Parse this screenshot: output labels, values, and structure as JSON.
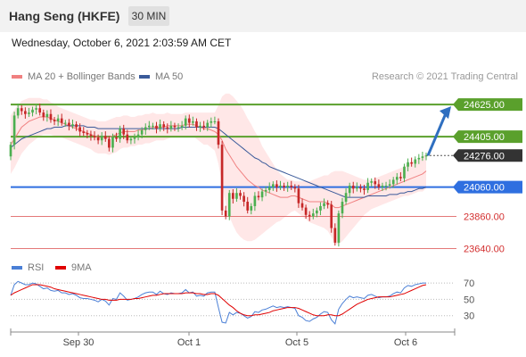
{
  "header": {
    "title": "Hang Seng (HKFE)",
    "timeframe": "30 MIN"
  },
  "date_line": "Wednesday, October 6, 2021 2:03:59 AM CET",
  "legend": {
    "ma20": {
      "label": "MA 20 + Bollinger Bands",
      "color": "#f08080"
    },
    "ma50": {
      "label": "MA 50",
      "color": "#3a5a9a"
    }
  },
  "credit": "Research © 2021 Trading Central",
  "rsi_legend": {
    "rsi": {
      "label": "RSI",
      "color": "#4a7fd6"
    },
    "ma9": {
      "label": "9MA",
      "color": "#e00000"
    }
  },
  "chart_data": {
    "type": "candlestick",
    "price_axis": {
      "min": 23600,
      "max": 24760
    },
    "x_labels": [
      "Sep 30",
      "Oct 1",
      "Oct 5",
      "Oct 6"
    ],
    "levels": [
      {
        "value": 24625,
        "label": "24625.00",
        "kind": "resistance",
        "color": "#5aa02c"
      },
      {
        "value": 24405,
        "label": "24405.00",
        "kind": "resistance",
        "color": "#5aa02c"
      },
      {
        "value": 24276,
        "label": "24276.00",
        "kind": "last",
        "color": "#333333"
      },
      {
        "value": 24060,
        "label": "24060.00",
        "kind": "pivot",
        "color": "#2f6fe0"
      },
      {
        "value": 23860,
        "label": "23860.00",
        "kind": "support",
        "color": "#e06666"
      },
      {
        "value": 23640,
        "label": "23640.00",
        "kind": "support",
        "color": "#e06666"
      }
    ],
    "close": [
      24350,
      24550,
      24600,
      24580,
      24560,
      24570,
      24590,
      24600,
      24570,
      24540,
      24560,
      24520,
      24510,
      24530,
      24500,
      24500,
      24480,
      24490,
      24470,
      24440,
      24430,
      24420,
      24410,
      24400,
      24380,
      24410,
      24390,
      24330,
      24400,
      24390,
      24460,
      24420,
      24380,
      24390,
      24400,
      24420,
      24450,
      24470,
      24480,
      24480,
      24460,
      24490,
      24470,
      24460,
      24480,
      24470,
      24470,
      24480,
      24530,
      24500,
      24510,
      24470,
      24480,
      24470,
      24500,
      24510,
      24510,
      24350,
      23900,
      23860,
      24020,
      23980,
      24020,
      24000,
      23960,
      23900,
      23930,
      24000,
      23990,
      24030,
      24040,
      24060,
      24080,
      24060,
      24070,
      24060,
      24070,
      24060,
      24050,
      23950,
      23920,
      23870,
      23860,
      23880,
      23900,
      23930,
      23950,
      23940,
      23780,
      23680,
      23880,
      23960,
      24020,
      24070,
      24050,
      24060,
      24050,
      24040,
      24090,
      24100,
      24080,
      24060,
      24070,
      24070,
      24080,
      24110,
      24130,
      24120,
      24200,
      24230,
      24220,
      24250,
      24260,
      24270,
      24276
    ],
    "ma20": [
      24350,
      24390,
      24430,
      24470,
      24490,
      24510,
      24520,
      24530,
      24540,
      24540,
      24540,
      24530,
      24520,
      24510,
      24500,
      24490,
      24480,
      24470,
      24460,
      24450,
      24440,
      24430,
      24420,
      24410,
      24400,
      24400,
      24400,
      24400,
      24410,
      24420,
      24430,
      24440,
      24440,
      24440,
      24440,
      24450,
      24450,
      24460,
      24460,
      24470,
      24470,
      24470,
      24470,
      24480,
      24480,
      24480,
      24480,
      24480,
      24490,
      24490,
      24490,
      24480,
      24470,
      24460,
      24460,
      24450,
      24440,
      24420,
      24380,
      24320,
      24280,
      24240,
      24200,
      24170,
      24140,
      24110,
      24090,
      24070,
      24060,
      24040,
      24030,
      24020,
      24010,
      24000,
      23990,
      23990,
      23990,
      24000,
      24000,
      23990,
      23980,
      23970,
      23960,
      23960,
      23960,
      23960,
      23960,
      23950,
      23940,
      23920,
      23920,
      23930,
      23940,
      23950,
      23960,
      23970,
      23980,
      23990,
      24000,
      24010,
      24020,
      24030,
      24040,
      24050,
      24060,
      24070,
      24080,
      24090,
      24100,
      24110,
      24120,
      24130,
      24140,
      24150,
      24170
    ],
    "ma50": [
      24330,
      24350,
      24370,
      24390,
      24400,
      24410,
      24420,
      24430,
      24440,
      24450,
      24460,
      24460,
      24470,
      24470,
      24470,
      24480,
      24480,
      24480,
      24480,
      24480,
      24480,
      24470,
      24470,
      24470,
      24460,
      24460,
      24460,
      24460,
      24460,
      24460,
      24460,
      24460,
      24460,
      24460,
      24460,
      24460,
      24460,
      24460,
      24460,
      24460,
      24460,
      24460,
      24460,
      24460,
      24460,
      24460,
      24460,
      24470,
      24470,
      24470,
      24470,
      24470,
      24470,
      24470,
      24470,
      24470,
      24470,
      24460,
      24440,
      24420,
      24400,
      24380,
      24360,
      24340,
      24320,
      24300,
      24280,
      24260,
      24250,
      24230,
      24220,
      24200,
      24190,
      24180,
      24170,
      24160,
      24150,
      24140,
      24130,
      24120,
      24110,
      24100,
      24090,
      24080,
      24070,
      24060,
      24050,
      24040,
      24030,
      24020,
      24010,
      24000,
      23990,
      23990,
      23990,
      23990,
      23990,
      23990,
      24000,
      24000,
      24000,
      24000,
      24000,
      24000,
      24010,
      24010,
      24010,
      24020,
      24020,
      24030,
      24030,
      24040,
      24050,
      24050,
      24060
    ],
    "band_width": [
      200,
      200,
      190,
      180,
      170,
      160,
      150,
      140,
      130,
      120,
      120,
      110,
      110,
      100,
      100,
      100,
      100,
      100,
      100,
      100,
      100,
      100,
      100,
      110,
      110,
      110,
      110,
      120,
      120,
      120,
      110,
      110,
      110,
      100,
      100,
      100,
      100,
      100,
      100,
      100,
      90,
      90,
      90,
      90,
      80,
      80,
      80,
      80,
      80,
      80,
      80,
      90,
      100,
      110,
      110,
      120,
      130,
      200,
      300,
      380,
      420,
      440,
      450,
      450,
      440,
      420,
      400,
      370,
      340,
      300,
      270,
      240,
      210,
      180,
      160,
      140,
      120,
      110,
      100,
      110,
      120,
      130,
      140,
      150,
      160,
      170,
      180,
      190,
      220,
      250,
      250,
      240,
      220,
      200,
      180,
      160,
      140,
      120,
      110,
      100,
      100,
      100,
      100,
      100,
      100,
      100,
      100,
      100,
      100,
      110,
      110,
      110,
      110,
      120,
      120
    ],
    "rsi_axis": {
      "min": 10,
      "max": 80,
      "ticks": [
        70,
        50,
        30
      ]
    },
    "rsi": [
      55,
      68,
      72,
      70,
      68,
      68,
      70,
      69,
      66,
      63,
      64,
      61,
      60,
      61,
      58,
      58,
      56,
      57,
      55,
      52,
      51,
      51,
      50,
      49,
      47,
      50,
      48,
      43,
      51,
      50,
      58,
      54,
      49,
      50,
      51,
      53,
      56,
      58,
      59,
      59,
      56,
      60,
      57,
      56,
      58,
      57,
      57,
      58,
      62,
      58,
      59,
      54,
      55,
      54,
      58,
      59,
      59,
      40,
      22,
      21,
      34,
      31,
      34,
      33,
      30,
      27,
      29,
      35,
      34,
      37,
      38,
      40,
      42,
      40,
      41,
      40,
      41,
      40,
      39,
      30,
      28,
      24,
      23,
      26,
      28,
      32,
      35,
      34,
      25,
      20,
      38,
      45,
      50,
      54,
      52,
      53,
      52,
      51,
      55,
      56,
      54,
      52,
      53,
      53,
      54,
      57,
      59,
      58,
      64,
      67,
      66,
      68,
      69,
      70,
      70
    ],
    "rsi_ma": [
      55,
      58,
      60,
      62,
      64,
      66,
      68,
      68,
      68,
      67,
      66,
      65,
      63,
      62,
      61,
      60,
      59,
      58,
      57,
      56,
      55,
      54,
      53,
      52,
      51,
      50,
      50,
      49,
      49,
      49,
      50,
      50,
      50,
      50,
      51,
      51,
      52,
      53,
      54,
      55,
      55,
      56,
      57,
      57,
      57,
      57,
      57,
      57,
      58,
      58,
      58,
      57,
      57,
      56,
      56,
      57,
      57,
      55,
      51,
      47,
      43,
      40,
      36,
      33,
      31,
      30,
      30,
      31,
      31,
      32,
      33,
      34,
      36,
      37,
      38,
      39,
      40,
      40,
      40,
      39,
      37,
      35,
      33,
      31,
      30,
      30,
      30,
      31,
      31,
      30,
      30,
      32,
      35,
      38,
      41,
      44,
      46,
      48,
      50,
      51,
      52,
      53,
      53,
      53,
      53,
      54,
      55,
      56,
      57,
      59,
      61,
      63,
      65,
      67,
      68
    ]
  }
}
